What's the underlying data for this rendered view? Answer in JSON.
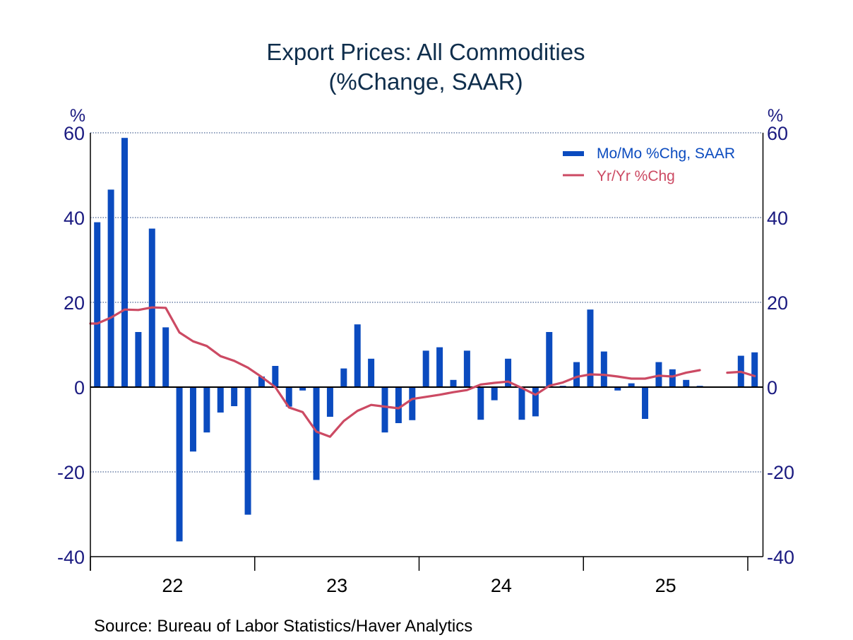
{
  "chart_data": {
    "type": "bar",
    "title": "Export Prices: All Commodities",
    "subtitle": "(%Change, SAAR)",
    "source": "Source:  Bureau of Labor Statistics/Haver Analytics",
    "y_unit_left": "%",
    "y_unit_right": "%",
    "ylim": [
      -40,
      60
    ],
    "yticks": [
      60,
      40,
      20,
      0,
      -20,
      -40
    ],
    "grid": true,
    "x_start": "2022-01",
    "x_end": "2026-01",
    "xtick_labels": [
      "22",
      "23",
      "24",
      "25"
    ],
    "legend_position": "top-right",
    "categories": [
      "2022-01",
      "2022-02",
      "2022-03",
      "2022-04",
      "2022-05",
      "2022-06",
      "2022-07",
      "2022-08",
      "2022-09",
      "2022-10",
      "2022-11",
      "2022-12",
      "2023-01",
      "2023-02",
      "2023-03",
      "2023-04",
      "2023-05",
      "2023-06",
      "2023-07",
      "2023-08",
      "2023-09",
      "2023-10",
      "2023-11",
      "2023-12",
      "2024-01",
      "2024-02",
      "2024-03",
      "2024-04",
      "2024-05",
      "2024-06",
      "2024-07",
      "2024-08",
      "2024-09",
      "2024-10",
      "2024-11",
      "2024-12",
      "2025-01",
      "2025-02",
      "2025-03",
      "2025-04",
      "2025-05",
      "2025-06",
      "2025-07",
      "2025-08",
      "2025-09",
      "2025-10",
      "2025-11",
      "2025-12",
      "2026-01"
    ],
    "series": [
      {
        "name": "Mo/Mo %Chg, SAAR",
        "type": "bar",
        "color": "#0b4bbf",
        "values": [
          38.9,
          46.6,
          58.8,
          13.0,
          37.4,
          14.1,
          -36.4,
          -15.2,
          -10.7,
          -6.0,
          -4.5,
          -30.1,
          2.5,
          5.0,
          -4.6,
          -0.8,
          -21.9,
          -7.0,
          4.4,
          14.8,
          6.7,
          -10.7,
          -8.5,
          -7.8,
          8.6,
          9.4,
          1.7,
          8.6,
          -7.7,
          -3.1,
          6.7,
          -7.7,
          -6.9,
          13.0,
          0.3,
          5.9,
          18.3,
          8.4,
          -0.8,
          0.9,
          -7.5,
          5.9,
          4.2,
          1.7,
          0.3,
          null,
          null,
          7.4,
          8.2
        ]
      },
      {
        "name": "Yr/Yr %Chg",
        "type": "line",
        "color": "#cc4a63",
        "values": [
          15.0,
          16.4,
          18.3,
          18.2,
          18.8,
          18.7,
          12.9,
          10.8,
          9.7,
          7.3,
          6.2,
          4.6,
          2.4,
          0.0,
          -4.8,
          -5.9,
          -10.5,
          -11.7,
          -8.0,
          -5.6,
          -4.2,
          -4.6,
          -5.0,
          -2.8,
          -2.3,
          -1.8,
          -1.2,
          -0.7,
          0.6,
          1.0,
          1.3,
          -0.2,
          -1.8,
          0.3,
          1.1,
          2.4,
          3.0,
          2.9,
          2.5,
          2.0,
          2.0,
          2.7,
          2.5,
          3.4,
          4.0,
          null,
          3.4,
          3.6,
          2.6
        ]
      }
    ]
  }
}
